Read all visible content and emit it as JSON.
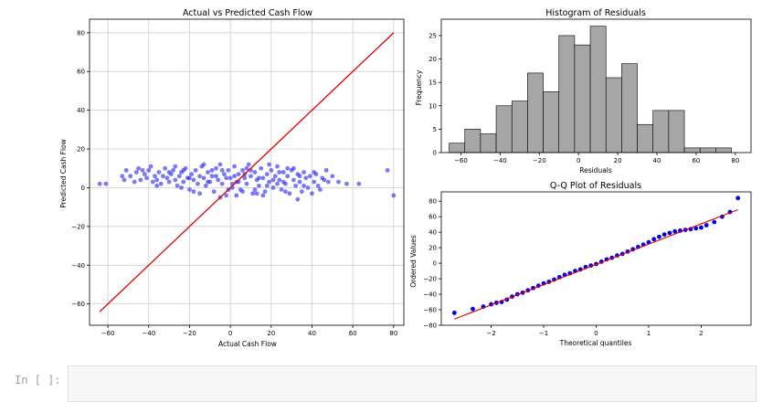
{
  "chart_data": [
    {
      "type": "scatter",
      "title": "Actual vs Predicted Cash Flow",
      "xlabel": "Actual Cash Flow",
      "ylabel": "Predicted Cash Flow",
      "xlim": [
        -69,
        85
      ],
      "ylim": [
        -71,
        87
      ],
      "xticks": [
        -60,
        -40,
        -20,
        0,
        20,
        40,
        60,
        80
      ],
      "yticks": [
        -60,
        -40,
        -20,
        0,
        20,
        40,
        60,
        80
      ],
      "grid": true,
      "point_color": "#2222ee",
      "line_color": "#e00000",
      "reference_line": {
        "x": [
          -64,
          80
        ],
        "y": [
          -64,
          80
        ]
      },
      "points": [
        [
          -64,
          2
        ],
        [
          -61,
          2
        ],
        [
          -53,
          6
        ],
        [
          -52,
          4
        ],
        [
          -51,
          9
        ],
        [
          -49,
          6
        ],
        [
          -46,
          8
        ],
        [
          -45,
          10
        ],
        [
          -44,
          4
        ],
        [
          -43,
          9
        ],
        [
          -42,
          7
        ],
        [
          -41,
          5
        ],
        [
          -40,
          9
        ],
        [
          -38,
          3
        ],
        [
          -37,
          6
        ],
        [
          -36,
          4
        ],
        [
          -35,
          8
        ],
        [
          -34,
          2
        ],
        [
          -33,
          6
        ],
        [
          -32,
          10
        ],
        [
          -31,
          5
        ],
        [
          -30,
          3
        ],
        [
          -29,
          7
        ],
        [
          -28,
          9
        ],
        [
          -27,
          4
        ],
        [
          -26,
          1
        ],
        [
          -25,
          6
        ],
        [
          -24,
          8
        ],
        [
          -23,
          3
        ],
        [
          -22,
          10
        ],
        [
          -21,
          5
        ],
        [
          -20,
          -1
        ],
        [
          -19,
          7
        ],
        [
          -18,
          4
        ],
        [
          -17,
          9
        ],
        [
          -16,
          2
        ],
        [
          -15,
          6
        ],
        [
          -14,
          11
        ],
        [
          -13,
          5
        ],
        [
          -12,
          1
        ],
        [
          -11,
          8
        ],
        [
          -10,
          3
        ],
        [
          -9,
          6
        ],
        [
          -8,
          -2
        ],
        [
          -7,
          10
        ],
        [
          -6,
          4
        ],
        [
          -5,
          12
        ],
        [
          -4,
          2
        ],
        [
          -3,
          7
        ],
        [
          -2,
          -4
        ],
        [
          -1,
          9
        ],
        [
          0,
          5
        ],
        [
          1,
          0
        ],
        [
          2,
          11
        ],
        [
          3,
          3
        ],
        [
          4,
          7
        ],
        [
          5,
          -1
        ],
        [
          6,
          9
        ],
        [
          7,
          5
        ],
        [
          8,
          2
        ],
        [
          9,
          12
        ],
        [
          10,
          6
        ],
        [
          11,
          -3
        ],
        [
          12,
          8
        ],
        [
          13,
          4
        ],
        [
          14,
          1
        ],
        [
          15,
          10
        ],
        [
          16,
          5
        ],
        [
          17,
          -2
        ],
        [
          18,
          7
        ],
        [
          19,
          3
        ],
        [
          20,
          9
        ],
        [
          21,
          0
        ],
        [
          22,
          6
        ],
        [
          23,
          11
        ],
        [
          24,
          4
        ],
        [
          25,
          -1
        ],
        [
          26,
          8
        ],
        [
          27,
          2
        ],
        [
          28,
          6
        ],
        [
          29,
          -3
        ],
        [
          30,
          9
        ],
        [
          31,
          4
        ],
        [
          32,
          1
        ],
        [
          33,
          7
        ],
        [
          34,
          3
        ],
        [
          35,
          -2
        ],
        [
          36,
          8
        ],
        [
          37,
          5
        ],
        [
          38,
          0
        ],
        [
          39,
          6
        ],
        [
          40,
          -3
        ],
        [
          41,
          3
        ],
        [
          42,
          7
        ],
        [
          43,
          1
        ],
        [
          44,
          -1
        ],
        [
          45,
          5
        ],
        [
          47,
          9
        ],
        [
          48,
          3
        ],
        [
          50,
          6
        ],
        [
          53,
          3
        ],
        [
          57,
          2
        ],
        [
          63,
          2
        ],
        [
          77,
          9
        ],
        [
          80,
          -4
        ],
        [
          -36,
          1
        ],
        [
          -27,
          11
        ],
        [
          -18,
          -2
        ],
        [
          -9,
          9
        ],
        [
          -2,
          5
        ],
        [
          3,
          -4
        ],
        [
          8,
          10
        ],
        [
          12,
          -1
        ],
        [
          19,
          12
        ],
        [
          26,
          3
        ],
        [
          33,
          -6
        ],
        [
          41,
          8
        ],
        [
          -47,
          3
        ],
        [
          -39,
          11
        ],
        [
          -24,
          0
        ],
        [
          -13,
          12
        ],
        [
          -5,
          -5
        ],
        [
          2,
          6
        ],
        [
          6,
          -2
        ],
        [
          14,
          5
        ],
        [
          23,
          2
        ],
        [
          28,
          10
        ],
        [
          36,
          1
        ],
        [
          46,
          4
        ],
        [
          -23,
          9
        ],
        [
          -15,
          -3
        ],
        [
          -7,
          6
        ],
        [
          -1,
          -1
        ],
        [
          4,
          3
        ],
        [
          10,
          9
        ],
        [
          16,
          -4
        ],
        [
          21,
          4
        ],
        [
          27,
          -2
        ],
        [
          31,
          10
        ],
        [
          -30,
          8
        ],
        [
          -20,
          5
        ],
        [
          -11,
          3
        ],
        [
          -4,
          9
        ],
        [
          1,
          2
        ],
        [
          7,
          7
        ],
        [
          13,
          -3
        ],
        [
          18,
          1
        ],
        [
          24,
          8
        ],
        [
          34,
          6
        ]
      ]
    },
    {
      "type": "bar",
      "title": "Histogram of Residuals",
      "xlabel": "Residuals",
      "ylabel": "Frequency",
      "xlim": [
        -70,
        88
      ],
      "ylim": [
        0,
        28.5
      ],
      "xticks": [
        -60,
        -40,
        -20,
        0,
        20,
        40,
        60,
        80
      ],
      "yticks": [
        0,
        5,
        10,
        15,
        20,
        25
      ],
      "bar_color": "#a6a6a6",
      "bins": [
        -66,
        -58,
        -50,
        -42,
        -34,
        -26,
        -18,
        -10,
        -2,
        6,
        14,
        22,
        30,
        38,
        46,
        54,
        62,
        70,
        78,
        86
      ],
      "values": [
        2,
        5,
        4,
        10,
        11,
        17,
        13,
        25,
        23,
        27,
        16,
        19,
        6,
        9,
        9,
        1,
        1,
        1,
        0,
        1
      ]
    },
    {
      "type": "scatter",
      "title": "Q-Q Plot of Residuals",
      "xlabel": "Theoretical quantiles",
      "ylabel": "Ordered Values",
      "xlim": [
        -2.95,
        2.95
      ],
      "ylim": [
        -80,
        92
      ],
      "xticks": [
        -2,
        -1,
        0,
        1,
        2
      ],
      "yticks": [
        -80,
        -60,
        -40,
        -20,
        0,
        20,
        40,
        60,
        80
      ],
      "point_color": "#0000ee",
      "line_color": "#e00000",
      "fit_line": {
        "x": [
          -2.7,
          2.7
        ],
        "y": [
          -72,
          69
        ]
      },
      "points": [
        [
          -2.7,
          -64
        ],
        [
          -2.35,
          -59
        ],
        [
          -2.15,
          -56
        ],
        [
          -2.0,
          -53
        ],
        [
          -1.9,
          -51
        ],
        [
          -1.8,
          -50
        ],
        [
          -1.7,
          -47
        ],
        [
          -1.6,
          -43
        ],
        [
          -1.5,
          -40
        ],
        [
          -1.4,
          -38
        ],
        [
          -1.3,
          -35
        ],
        [
          -1.2,
          -32
        ],
        [
          -1.1,
          -29
        ],
        [
          -1.0,
          -26
        ],
        [
          -0.9,
          -24
        ],
        [
          -0.8,
          -21
        ],
        [
          -0.7,
          -18
        ],
        [
          -0.6,
          -15
        ],
        [
          -0.5,
          -13
        ],
        [
          -0.4,
          -10
        ],
        [
          -0.3,
          -8
        ],
        [
          -0.2,
          -5
        ],
        [
          -0.1,
          -3
        ],
        [
          0.0,
          -1
        ],
        [
          0.1,
          2
        ],
        [
          0.2,
          5
        ],
        [
          0.3,
          7
        ],
        [
          0.4,
          10
        ],
        [
          0.5,
          12
        ],
        [
          0.6,
          15
        ],
        [
          0.7,
          18
        ],
        [
          0.8,
          21
        ],
        [
          0.9,
          24
        ],
        [
          1.0,
          27
        ],
        [
          1.1,
          31
        ],
        [
          1.2,
          34
        ],
        [
          1.3,
          37
        ],
        [
          1.4,
          39
        ],
        [
          1.5,
          41
        ],
        [
          1.6,
          42
        ],
        [
          1.7,
          43
        ],
        [
          1.8,
          44
        ],
        [
          1.9,
          45
        ],
        [
          2.0,
          46
        ],
        [
          2.1,
          49
        ],
        [
          2.25,
          53
        ],
        [
          2.4,
          60
        ],
        [
          2.55,
          66
        ],
        [
          2.7,
          84
        ]
      ]
    }
  ],
  "notebook": {
    "prompt": "In [ ]:"
  }
}
